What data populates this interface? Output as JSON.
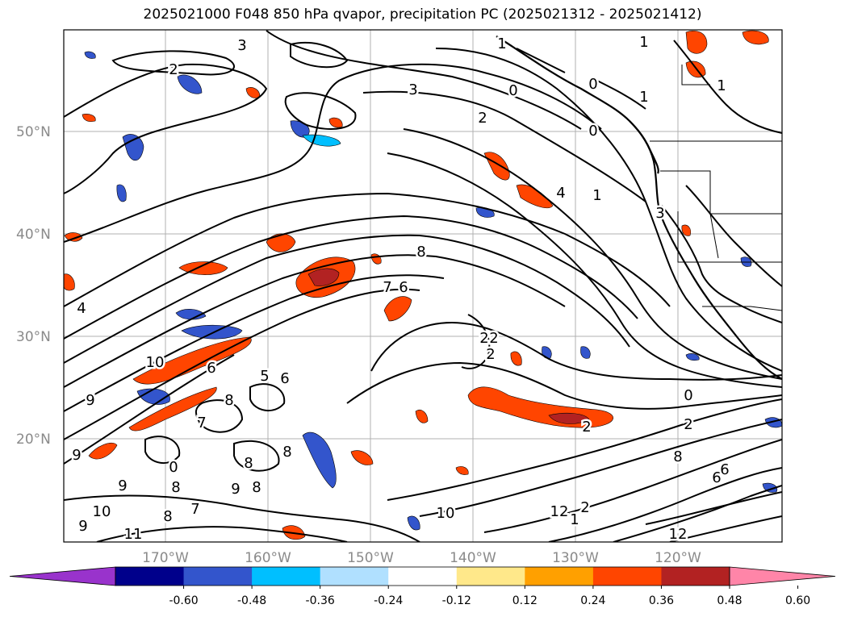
{
  "title": "2025021000 F048 850 hPa qvapor, precipitation PC (2025021312 - 2025021412)",
  "map": {
    "lat_labels": [
      "50°N",
      "40°N",
      "30°N",
      "20°N"
    ],
    "lon_labels": [
      "170°W",
      "160°W",
      "150°W",
      "140°W",
      "130°W",
      "120°W"
    ],
    "contour_labels": [
      "3",
      "2",
      "1",
      "0",
      "1",
      "3",
      "2",
      "0",
      "1",
      "4",
      "8",
      "7",
      "6",
      "4",
      "10",
      "6",
      "9",
      "8",
      "7",
      "6",
      "5",
      "8",
      "2",
      "9",
      "0",
      "8",
      "7",
      "9",
      "8",
      "9",
      "10",
      "11",
      "9",
      "8",
      "8",
      "10",
      "2",
      "0",
      "1",
      "2",
      "2",
      "8",
      "6",
      "12",
      "1",
      "12",
      "0",
      "1",
      "3",
      "2",
      "2",
      "6"
    ]
  },
  "colorbar": {
    "labels": [
      "-0.60",
      "-0.48",
      "-0.36",
      "-0.24",
      "-0.12",
      "0.12",
      "0.24",
      "0.36",
      "0.48",
      "0.60"
    ],
    "colors": [
      "#9933cc",
      "#00008b",
      "#3355cc",
      "#00bfff",
      "#b0e0ff",
      "#ffffff",
      "#ffe88a",
      "#ffa000",
      "#ff4500",
      "#b22222",
      "#ff85a8"
    ]
  }
}
